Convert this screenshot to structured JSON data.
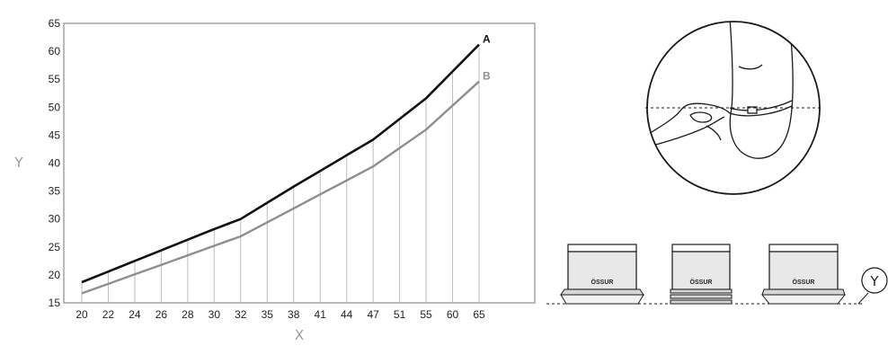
{
  "chart_data": {
    "type": "line",
    "categories": [
      "20",
      "22",
      "24",
      "26",
      "28",
      "30",
      "32",
      "35",
      "38",
      "41",
      "44",
      "47",
      "51",
      "55",
      "60",
      "65"
    ],
    "series": [
      {
        "name": "A",
        "values": [
          18.7,
          20.6,
          22.5,
          24.4,
          26.3,
          28.2,
          30.0,
          32.9,
          35.8,
          38.6,
          41.4,
          44.2,
          47.9,
          51.6,
          56.4,
          61.2
        ],
        "color": "#111111"
      },
      {
        "name": "B",
        "values": [
          16.7,
          18.4,
          20.1,
          21.8,
          23.5,
          25.2,
          26.9,
          29.4,
          31.9,
          34.4,
          36.9,
          39.4,
          42.7,
          46.0,
          50.3,
          54.6
        ],
        "color": "#8e8e8e"
      }
    ],
    "xlabel": "X",
    "ylabel": "Y",
    "ylim": [
      15,
      65
    ],
    "yticks": [
      15,
      20,
      25,
      30,
      35,
      40,
      45,
      50,
      55,
      60,
      65
    ],
    "grid": "vertical",
    "colors": {
      "frame": "#a8a8a8",
      "grid": "#bdbdbd"
    }
  },
  "illustration": {
    "measure_callout": "Y",
    "logo_text": "ÖSSUR"
  }
}
